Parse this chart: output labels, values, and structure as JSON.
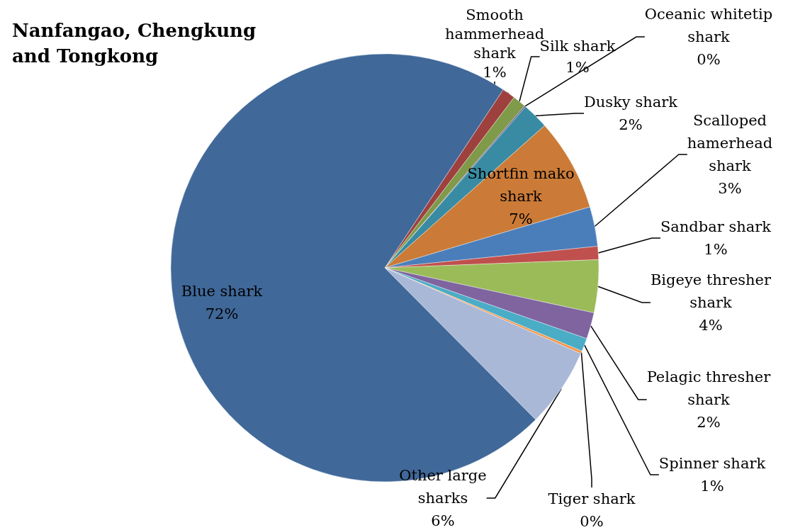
{
  "chart_data": {
    "type": "pie",
    "title": "Nanfangao, Chengkung and Tongkong",
    "categories": [
      "Smooth hammerhead shark",
      "Silk shark",
      "Oceanic whitetip shark",
      "Dusky shark",
      "Shortfin mako shark",
      "Scalloped hamerhead shark",
      "Sandbar shark",
      "Bigeye thresher shark",
      "Pelagic thresher shark",
      "Spinner shark",
      "Tiger shark",
      "Other large sharks",
      "Blue shark"
    ],
    "values": [
      1,
      1,
      0.1,
      2,
      7,
      3,
      1,
      4,
      2,
      1,
      0.2,
      6,
      72
    ],
    "value_labels": [
      "1%",
      "1%",
      "0%",
      "2%",
      "7%",
      "3%",
      "1%",
      "4%",
      "2%",
      "1%",
      "0%",
      "6%",
      "72%"
    ],
    "colors": [
      "#9e413e",
      "#7f9a48",
      "#6b5488",
      "#388ba3",
      "#cb7b37",
      "#4a7ebb",
      "#bf504d",
      "#9bbb59",
      "#7f64a0",
      "#4bacc6",
      "#f79646",
      "#a9b8d7",
      "#406899"
    ]
  }
}
